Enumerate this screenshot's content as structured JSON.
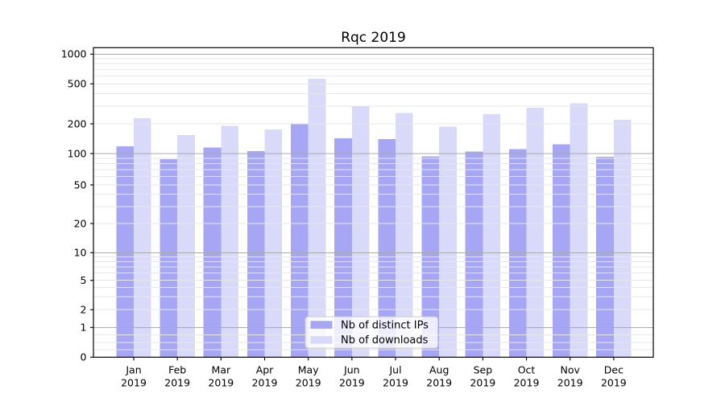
{
  "chart_data": {
    "type": "bar",
    "title": "Rqc 2019",
    "xlabel": "",
    "ylabel": "",
    "x_tick_year": "2019",
    "categories": [
      "Jan",
      "Feb",
      "Mar",
      "Apr",
      "May",
      "Jun",
      "Jul",
      "Aug",
      "Sep",
      "Oct",
      "Nov",
      "Dec"
    ],
    "series": [
      {
        "name": "Nb of distinct IPs",
        "color": "#a6a6f5",
        "values": [
          118,
          88,
          115,
          106,
          200,
          143,
          140,
          94,
          105,
          111,
          124,
          93
        ]
      },
      {
        "name": "Nb of downloads",
        "color": "#d9d9fa",
        "values": [
          227,
          154,
          190,
          176,
          565,
          298,
          256,
          187,
          250,
          289,
          320,
          220
        ]
      }
    ],
    "yscale": "symlog",
    "y_ticks": [
      0,
      1,
      2,
      5,
      10,
      20,
      50,
      100,
      200,
      500,
      1000
    ],
    "ylim": [
      0,
      1000
    ],
    "grid": "both",
    "legend_position": "lower center"
  }
}
